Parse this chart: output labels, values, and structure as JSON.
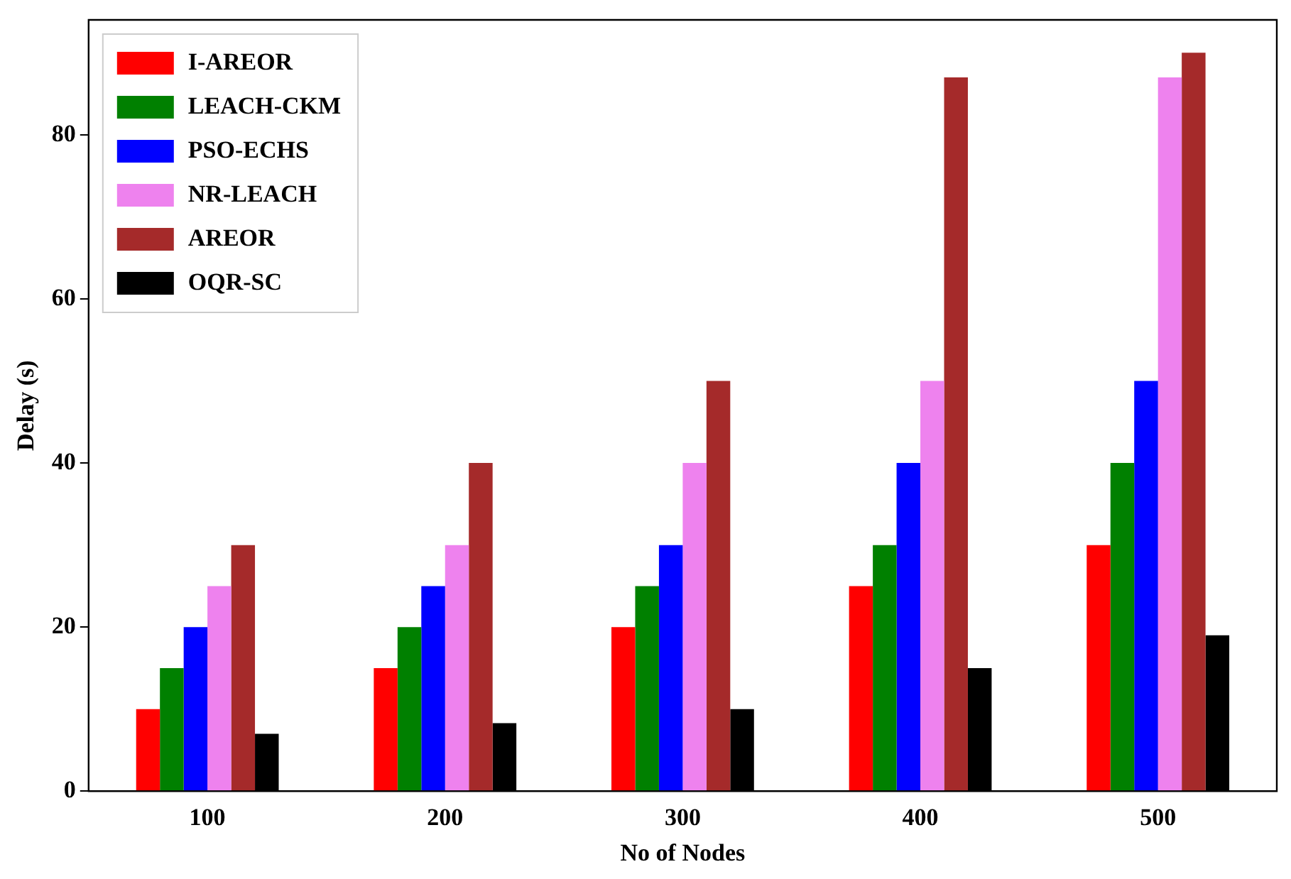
{
  "chart_data": {
    "type": "bar",
    "xlabel": "No of Nodes",
    "ylabel": "Delay (s)",
    "categories": [
      "100",
      "200",
      "300",
      "400",
      "500"
    ],
    "series": [
      {
        "name": "I-AREOR",
        "color": "#ff0000",
        "values": [
          10,
          15,
          20,
          25,
          30
        ]
      },
      {
        "name": "LEACH-CKM",
        "color": "#008000",
        "values": [
          15,
          20,
          25,
          30,
          40
        ]
      },
      {
        "name": "PSO-ECHS",
        "color": "#0000ff",
        "values": [
          20,
          25,
          30,
          40,
          50
        ]
      },
      {
        "name": "NR-LEACH",
        "color": "#ee82ee",
        "values": [
          25,
          30,
          40,
          50,
          87
        ]
      },
      {
        "name": "AREOR",
        "color": "#a52a2a",
        "values": [
          30,
          40,
          50,
          87,
          90
        ]
      },
      {
        "name": "OQR-SC",
        "color": "#000000",
        "values": [
          7,
          8.3,
          10,
          15,
          19
        ]
      }
    ],
    "ylim": [
      0,
      94
    ],
    "yticks": [
      0,
      20,
      40,
      60,
      80
    ],
    "grid": false,
    "legend": "top left"
  }
}
